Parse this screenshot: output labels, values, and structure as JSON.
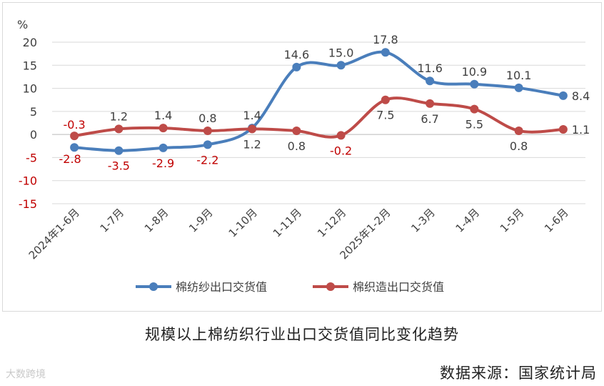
{
  "chart_data": {
    "type": "line",
    "ylabel": "%",
    "ylim": [
      -15,
      20
    ],
    "yticks": [
      20,
      15,
      10,
      5,
      0,
      -5,
      -10,
      -15
    ],
    "grid": true,
    "legend_position": "bottom",
    "categories": [
      "2024年1-6月",
      "1-7月",
      "1-8月",
      "1-9月",
      "1-10月",
      "1-11月",
      "1-12月",
      "2025年1-2月",
      "1-3月",
      "1-4月",
      "1-5月",
      "1-6月"
    ],
    "series": [
      {
        "name": "棉纺纱出口交货值",
        "color": "#4a7ebb",
        "values": [
          -2.8,
          -3.5,
          -2.9,
          -2.2,
          1.4,
          14.6,
          15.0,
          17.8,
          11.6,
          10.9,
          10.1,
          8.4
        ],
        "labels": [
          "-2.8",
          "-3.5",
          "-2.9",
          "-2.2",
          "1.4",
          "14.6",
          "15.0",
          "17.8",
          "11.6",
          "10.9",
          "10.1",
          "8.4"
        ]
      },
      {
        "name": "棉织造出口交货值",
        "color": "#be4b48",
        "values": [
          -0.3,
          1.2,
          1.4,
          0.8,
          1.2,
          0.8,
          -0.2,
          7.5,
          6.7,
          5.5,
          0.8,
          1.1
        ],
        "labels": [
          "-0.3",
          "1.2",
          "1.4",
          "0.8",
          "1.2",
          "0.8",
          "-0.2",
          "7.5",
          "6.7",
          "5.5",
          "0.8",
          "1.1"
        ]
      }
    ]
  },
  "caption": "规模以上棉纺织行业出口交货值同比变化趋势",
  "source": "数据来源：国家统计局",
  "watermark": "大数跨境"
}
